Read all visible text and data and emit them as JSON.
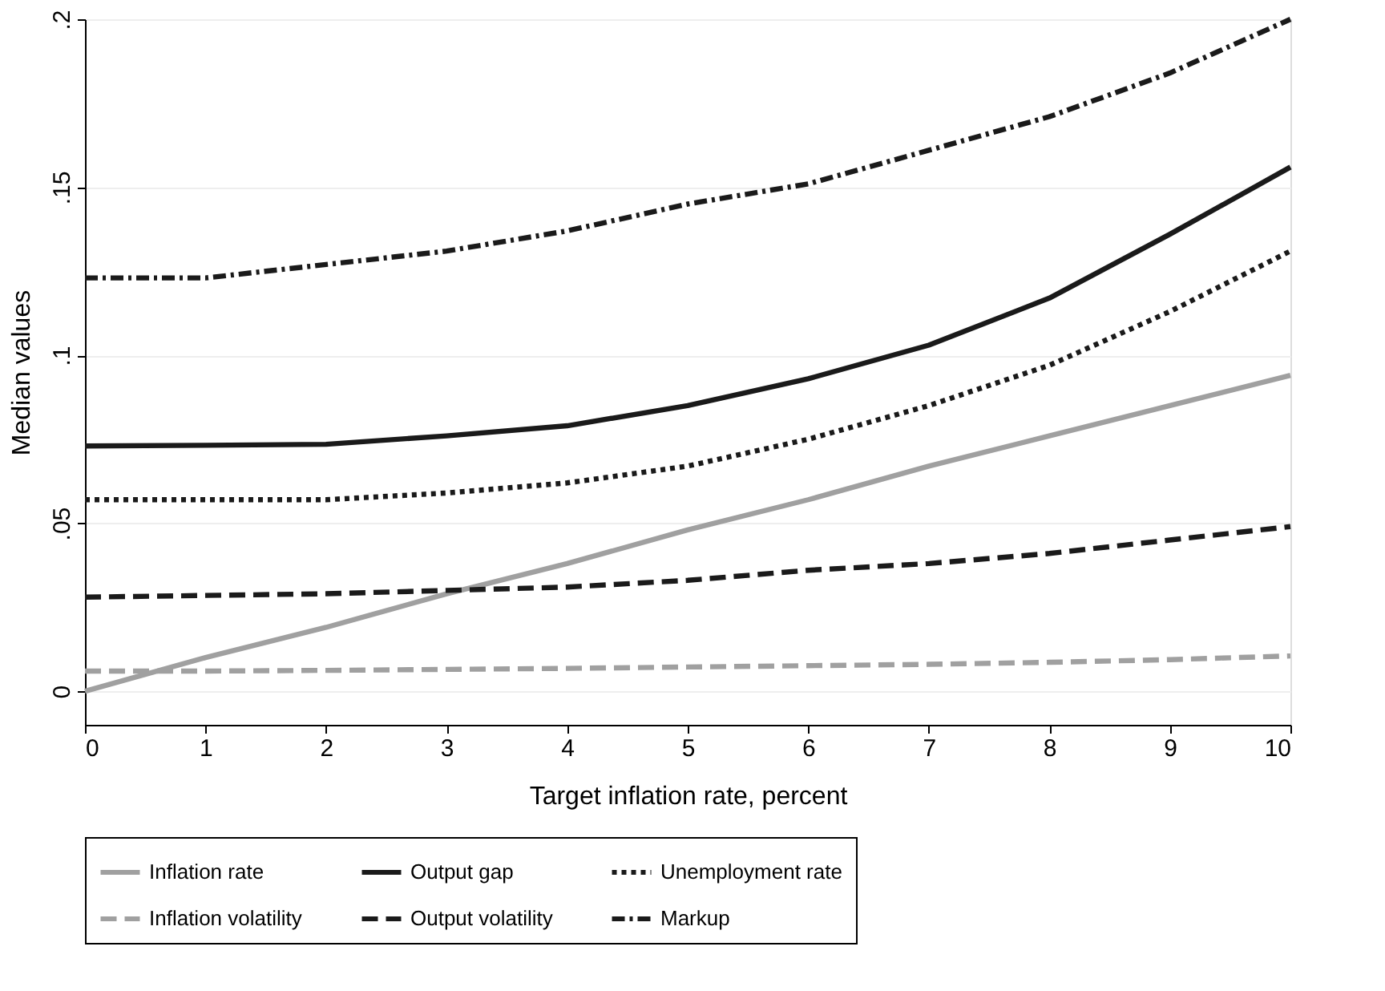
{
  "chart_data": {
    "type": "line",
    "xlabel": "Target inflation rate, percent",
    "ylabel": "Median values",
    "x": [
      0,
      1,
      2,
      3,
      4,
      5,
      6,
      7,
      8,
      9,
      10
    ],
    "xlim": [
      0,
      10
    ],
    "xticks": [
      0,
      1,
      2,
      3,
      4,
      5,
      6,
      7,
      8,
      9,
      10
    ],
    "ylim": [
      -0.01,
      0.2
    ],
    "yticks": [
      {
        "value": 0,
        "label": "0"
      },
      {
        "value": 0.05,
        "label": ".05"
      },
      {
        "value": 0.1,
        "label": ".1"
      },
      {
        "value": 0.15,
        "label": ".15"
      },
      {
        "value": 0.2,
        "label": ".2"
      }
    ],
    "grid": "y",
    "legend": "bottom",
    "marker": "none",
    "series": [
      {
        "name": "Inflation rate",
        "color": "#a0a0a0",
        "line_style": "solid",
        "values": [
          0,
          0.01,
          0.019,
          0.029,
          0.038,
          0.048,
          0.057,
          0.067,
          0.076,
          0.085,
          0.094
        ]
      },
      {
        "name": "Output gap",
        "color": "#1a1a1a",
        "line_style": "solid",
        "values": [
          0.073,
          0.0732,
          0.0735,
          0.076,
          0.079,
          0.085,
          0.093,
          0.103,
          0.117,
          0.136,
          0.156
        ]
      },
      {
        "name": "Unemployment rate",
        "color": "#1a1a1a",
        "line_style": "dotted",
        "values": [
          0.057,
          0.057,
          0.057,
          0.059,
          0.062,
          0.067,
          0.075,
          0.085,
          0.097,
          0.113,
          0.131
        ]
      },
      {
        "name": "Inflation volatility",
        "color": "#a0a0a0",
        "line_style": "dashed",
        "values": [
          0.006,
          0.006,
          0.0062,
          0.0065,
          0.0068,
          0.0072,
          0.0076,
          0.008,
          0.0086,
          0.0094,
          0.0105
        ]
      },
      {
        "name": "Output volatility",
        "color": "#1a1a1a",
        "line_style": "dashed",
        "values": [
          0.028,
          0.0285,
          0.029,
          0.03,
          0.031,
          0.033,
          0.036,
          0.038,
          0.041,
          0.045,
          0.049
        ]
      },
      {
        "name": "Markup",
        "color": "#1a1a1a",
        "line_style": "dashdot",
        "values": [
          0.123,
          0.123,
          0.127,
          0.131,
          0.137,
          0.145,
          0.151,
          0.161,
          0.171,
          0.184,
          0.2
        ]
      }
    ]
  }
}
